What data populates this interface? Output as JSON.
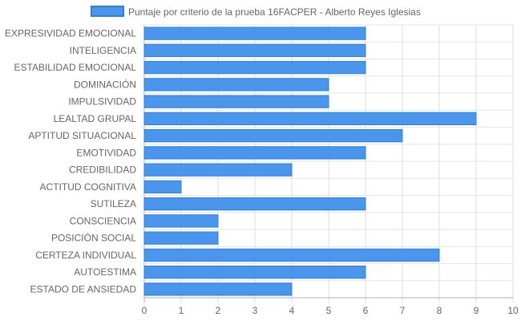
{
  "chart_data": {
    "type": "bar",
    "orientation": "horizontal",
    "categories": [
      "EXPRESIVIDAD EMOCIONAL",
      "INTELIGENCIA",
      "ESTABILIDAD EMOCIONAL",
      "DOMINACIÓN",
      "IMPULSIVIDAD",
      "LEALTAD GRUPAL",
      "APTITUD SITUACIONAL",
      "EMOTIVIDAD",
      "CREDIBILIDAD",
      "ACTITUD COGNITIVA",
      "SUTILEZA",
      "CONSCIENCIA",
      "POSICIÓN SOCIAL",
      "CERTEZA INDIVIDUAL",
      "AUTOESTIMA",
      "ESTADO DE ANSIEDAD"
    ],
    "series": [
      {
        "name": "Puntaje por criterio de la prueba 16FACPER - Alberto Reyes Iglesias",
        "values": [
          6,
          6,
          6,
          5,
          5,
          9,
          7,
          6,
          4,
          1,
          6,
          2,
          2,
          8,
          6,
          4
        ],
        "color": "#4a96ec",
        "border_color": "#2f7fe0"
      }
    ],
    "x_ticks": [
      "0",
      "1",
      "2",
      "3",
      "4",
      "5",
      "6",
      "7",
      "8",
      "9",
      "10"
    ],
    "xlim": [
      0,
      10
    ],
    "grid": true,
    "legend_position": "top"
  }
}
